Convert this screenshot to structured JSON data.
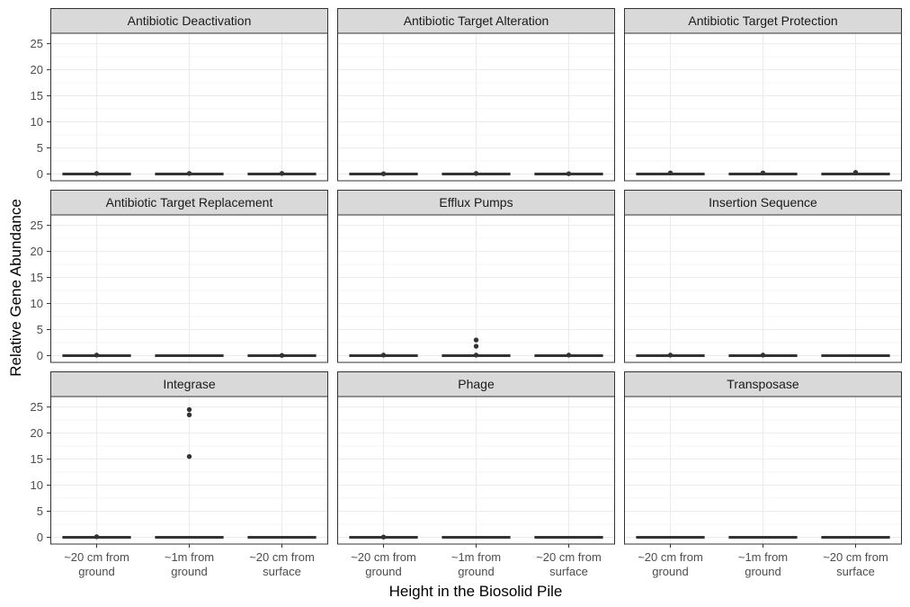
{
  "chart_data": {
    "type": "boxplot",
    "facets": [
      {
        "title": "Antibiotic Deactivation",
        "series": [
          {
            "category": "~20 cm from ground",
            "median": 0,
            "outliers": [
              0.1
            ]
          },
          {
            "category": "~1m from ground",
            "median": 0,
            "outliers": [
              0.1
            ]
          },
          {
            "category": "~20 cm from surface",
            "median": 0,
            "outliers": [
              0.1
            ]
          }
        ]
      },
      {
        "title": "Antibiotic Target Alteration",
        "series": [
          {
            "category": "~20 cm from ground",
            "median": 0,
            "outliers": [
              0.05
            ]
          },
          {
            "category": "~1m from ground",
            "median": 0,
            "outliers": [
              0.1
            ]
          },
          {
            "category": "~20 cm from surface",
            "median": 0,
            "outliers": [
              0.05
            ]
          }
        ]
      },
      {
        "title": "Antibiotic Target Protection",
        "series": [
          {
            "category": "~20 cm from ground",
            "median": 0,
            "outliers": [
              0.2
            ]
          },
          {
            "category": "~1m from ground",
            "median": 0,
            "outliers": [
              0.2
            ]
          },
          {
            "category": "~20 cm from surface",
            "median": 0,
            "outliers": [
              0.3
            ]
          }
        ]
      },
      {
        "title": "Antibiotic Target Replacement",
        "series": [
          {
            "category": "~20 cm from ground",
            "median": 0,
            "outliers": [
              0.1
            ]
          },
          {
            "category": "~1m from ground",
            "median": 0,
            "outliers": []
          },
          {
            "category": "~20 cm from surface",
            "median": 0,
            "outliers": [
              0.05
            ]
          }
        ]
      },
      {
        "title": "Efflux Pumps",
        "series": [
          {
            "category": "~20 cm from ground",
            "median": 0,
            "outliers": [
              0.1
            ]
          },
          {
            "category": "~1m from ground",
            "median": 0,
            "outliers": [
              3.0,
              1.8,
              0.1
            ]
          },
          {
            "category": "~20 cm from surface",
            "median": 0,
            "outliers": [
              0.1
            ]
          }
        ]
      },
      {
        "title": "Insertion Sequence",
        "series": [
          {
            "category": "~20 cm from ground",
            "median": 0,
            "outliers": [
              0.1
            ]
          },
          {
            "category": "~1m from ground",
            "median": 0,
            "outliers": [
              0.1
            ]
          },
          {
            "category": "~20 cm from surface",
            "median": 0,
            "outliers": []
          }
        ]
      },
      {
        "title": "Integrase",
        "series": [
          {
            "category": "~20 cm from ground",
            "median": 0,
            "outliers": [
              0.1
            ]
          },
          {
            "category": "~1m from ground",
            "median": 0,
            "outliers": [
              24.5,
              23.5,
              15.5
            ]
          },
          {
            "category": "~20 cm from surface",
            "median": 0,
            "outliers": []
          }
        ]
      },
      {
        "title": "Phage",
        "series": [
          {
            "category": "~20 cm from ground",
            "median": 0,
            "outliers": [
              0.05
            ]
          },
          {
            "category": "~1m from ground",
            "median": 0,
            "outliers": []
          },
          {
            "category": "~20 cm from surface",
            "median": 0,
            "outliers": []
          }
        ]
      },
      {
        "title": "Transposase",
        "series": [
          {
            "category": "~20 cm from ground",
            "median": 0,
            "outliers": []
          },
          {
            "category": "~1m from ground",
            "median": 0,
            "outliers": []
          },
          {
            "category": "~20 cm from surface",
            "median": 0,
            "outliers": []
          }
        ]
      }
    ],
    "categories": [
      [
        "~20 cm from",
        "ground"
      ],
      [
        "~1m from",
        "ground"
      ],
      [
        "~20 cm from",
        "surface"
      ]
    ],
    "ylim": [
      -1.3,
      27
    ],
    "yticks": [
      0,
      5,
      10,
      15,
      20,
      25
    ],
    "xlabel": "Height in the Biosolid Pile",
    "ylabel": "Relative Gene Abundance",
    "grid": true,
    "shared_y_axis": true,
    "colors": {
      "strip_fill": "#d9d9d9",
      "panel_border": "#333333",
      "grid_major": "#ebebeb",
      "grid_minor": "#f5f5f5",
      "box_line": "#333333",
      "outlier": "#333333"
    }
  }
}
